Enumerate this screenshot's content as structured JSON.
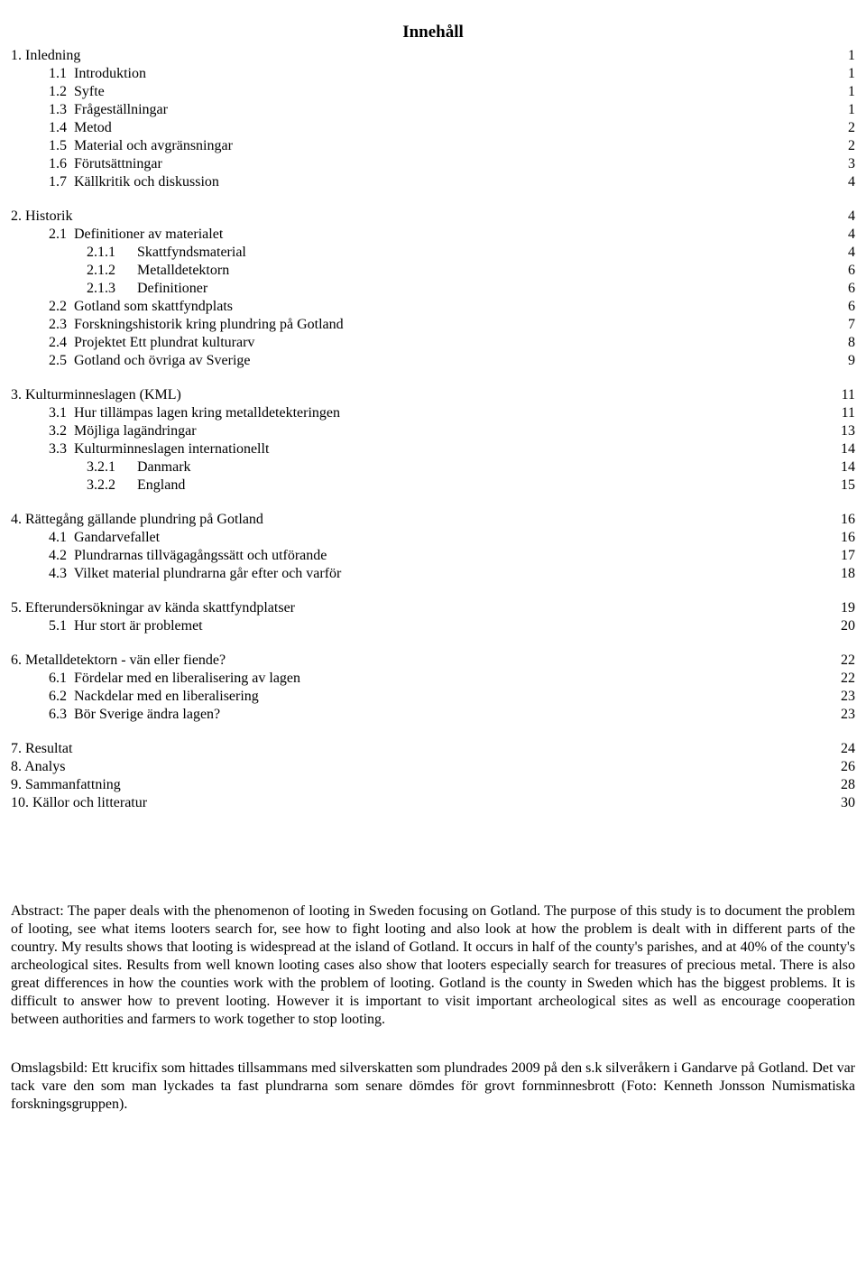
{
  "title": "Innehåll",
  "toc": [
    {
      "label": "1. Inledning",
      "page": "1",
      "level": 0
    },
    {
      "label": "1.1  Introduktion",
      "page": "1",
      "level": 1
    },
    {
      "label": "1.2  Syfte",
      "page": "1",
      "level": 1
    },
    {
      "label": "1.3  Frågeställningar",
      "page": "1",
      "level": 1
    },
    {
      "label": "1.4  Metod",
      "page": "2",
      "level": 1
    },
    {
      "label": "1.5  Material och avgränsningar",
      "page": "2",
      "level": 1
    },
    {
      "label": "1.6  Förutsättningar",
      "page": "3",
      "level": 1
    },
    {
      "label": "1.7  Källkritik och diskussion",
      "page": "4",
      "level": 1
    },
    {
      "gap": true
    },
    {
      "label": "2. Historik",
      "page": "4",
      "level": 0
    },
    {
      "label": "2.1  Definitioner av materialet",
      "page": "4",
      "level": 1
    },
    {
      "label": "2.1.1      Skattfyndsmaterial",
      "page": "4",
      "level": 2
    },
    {
      "label": "2.1.2      Metalldetektorn",
      "page": "6",
      "level": 2
    },
    {
      "label": "2.1.3      Definitioner",
      "page": "6",
      "level": 2
    },
    {
      "label": "2.2  Gotland som skattfyndplats",
      "page": "6",
      "level": 1
    },
    {
      "label": "2.3  Forskningshistorik kring plundring på Gotland",
      "page": "7",
      "level": 1
    },
    {
      "label": "2.4  Projektet Ett plundrat kulturarv",
      "page": "8",
      "level": 1
    },
    {
      "label": "2.5  Gotland och övriga av Sverige",
      "page": "9",
      "level": 1
    },
    {
      "gap": true
    },
    {
      "label": "3. Kulturminneslagen (KML)",
      "page": "11",
      "level": 0
    },
    {
      "label": "3.1  Hur tillämpas lagen kring metalldetekteringen",
      "page": "11",
      "level": 1
    },
    {
      "label": "3.2  Möjliga lagändringar",
      "page": "13",
      "level": 1
    },
    {
      "label": "3.3  Kulturminneslagen internationellt",
      "page": "14",
      "level": 1
    },
    {
      "label": "3.2.1      Danmark",
      "page": "14",
      "level": 2
    },
    {
      "label": "3.2.2      England",
      "page": "15",
      "level": 2
    },
    {
      "gap": true
    },
    {
      "label": "4. Rättegång gällande plundring på Gotland",
      "page": "16",
      "level": 0
    },
    {
      "label": "4.1  Gandarvefallet",
      "page": "16",
      "level": 1
    },
    {
      "label": "4.2  Plundrarnas tillvägagångssätt och utförande",
      "page": "17",
      "level": 1
    },
    {
      "label": "4.3  Vilket material plundrarna går efter och varför",
      "page": "18",
      "level": 1
    },
    {
      "gap": true
    },
    {
      "label": "5. Efterundersökningar av kända skattfyndplatser",
      "page": "19",
      "level": 0
    },
    {
      "label": "5.1  Hur stort är problemet",
      "page": "20",
      "level": 1
    },
    {
      "gap": true
    },
    {
      "label": "6. Metalldetektorn - vän eller fiende?",
      "page": "22",
      "level": 0
    },
    {
      "label": "6.1  Fördelar med en liberalisering av lagen",
      "page": "22",
      "level": 1
    },
    {
      "label": "6.2  Nackdelar med en liberalisering",
      "page": "23",
      "level": 1
    },
    {
      "label": "6.3  Bör Sverige ändra lagen?",
      "page": "23",
      "level": 1
    },
    {
      "gap": true
    },
    {
      "label": "7. Resultat",
      "page": "24",
      "level": 0
    },
    {
      "label": "8. Analys",
      "page": "26",
      "level": 0
    },
    {
      "label": "9. Sammanfattning",
      "page": "28",
      "level": 0
    },
    {
      "label": "10. Källor och litteratur",
      "page": "30",
      "level": 0
    }
  ],
  "abstract": "Abstract: The paper deals with the phenomenon of looting in Sweden focusing on Gotland. The purpose of this study is to document the problem of looting, see what items looters search for, see how to fight looting and also look at how the problem is dealt with in different parts of the country. My results shows that looting is widespread at the island of Gotland. It occurs in half of the county's parishes, and at 40% of the county's archeological sites. Results from well known looting cases also show that looters especially search for treasures of  precious metal. There is also great differences in how the counties work with the problem of looting. Gotland is the county in Sweden which has the biggest problems. It is difficult to answer how to prevent looting. However it is important to visit important archeological sites as well as encourage cooperation between authorities and farmers to work together to stop looting.",
  "caption": "Omslagsbild: Ett krucifix som hittades tillsammans med silverskatten som plundrades 2009  på den s.k silveråkern i Gandarve på Gotland. Det var tack vare den som man lyckades ta fast plundrarna som senare dömdes för grovt fornminnesbrott (Foto: Kenneth Jonsson Numismatiska forskningsgruppen)."
}
